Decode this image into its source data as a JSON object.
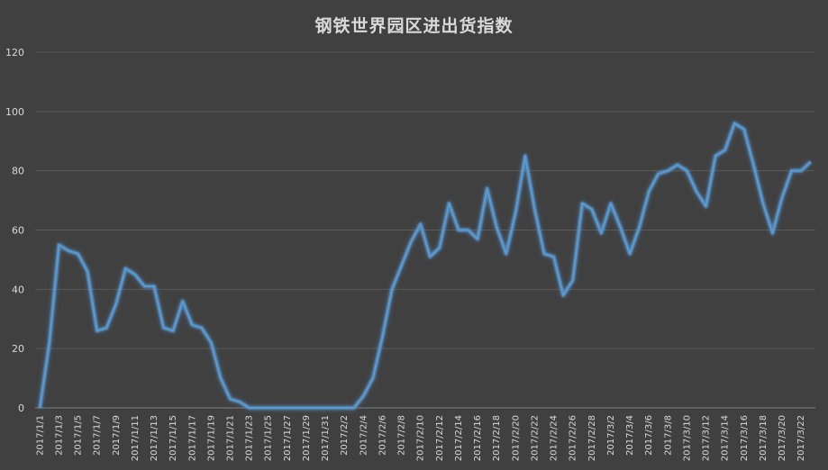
{
  "chart_data": {
    "type": "line",
    "title": "钢铁世界园区进出货指数",
    "xlabel": "",
    "ylabel": "",
    "ylim": [
      0,
      120
    ],
    "yticks": [
      0,
      20,
      40,
      60,
      80,
      100,
      120
    ],
    "grid": true,
    "legend": "none",
    "line_color": "#5b9bd5",
    "x": [
      "2017/1/1",
      "2017/1/2",
      "2017/1/3",
      "2017/1/4",
      "2017/1/5",
      "2017/1/6",
      "2017/1/7",
      "2017/1/8",
      "2017/1/9",
      "2017/1/10",
      "2017/1/11",
      "2017/1/12",
      "2017/1/13",
      "2017/1/14",
      "2017/1/15",
      "2017/1/16",
      "2017/1/17",
      "2017/1/18",
      "2017/1/19",
      "2017/1/20",
      "2017/1/21",
      "2017/1/22",
      "2017/1/23",
      "2017/1/24",
      "2017/1/25",
      "2017/1/26",
      "2017/1/27",
      "2017/1/28",
      "2017/1/29",
      "2017/1/30",
      "2017/1/31",
      "2017/2/1",
      "2017/2/2",
      "2017/2/3",
      "2017/2/4",
      "2017/2/5",
      "2017/2/6",
      "2017/2/7",
      "2017/2/8",
      "2017/2/9",
      "2017/2/10",
      "2017/2/11",
      "2017/2/12",
      "2017/2/13",
      "2017/2/14",
      "2017/2/15",
      "2017/2/16",
      "2017/2/17",
      "2017/2/18",
      "2017/2/19",
      "2017/2/20",
      "2017/2/21",
      "2017/2/22",
      "2017/2/23",
      "2017/2/24",
      "2017/2/25",
      "2017/2/26",
      "2017/2/27",
      "2017/2/28",
      "2017/3/1",
      "2017/3/2",
      "2017/3/3",
      "2017/3/4",
      "2017/3/5",
      "2017/3/6",
      "2017/3/7",
      "2017/3/8",
      "2017/3/9",
      "2017/3/10",
      "2017/3/11",
      "2017/3/12",
      "2017/3/13",
      "2017/3/14",
      "2017/3/15",
      "2017/3/16",
      "2017/3/17",
      "2017/3/18",
      "2017/3/19",
      "2017/3/20",
      "2017/3/21",
      "2017/3/22",
      "2017/3/23"
    ],
    "x_tick_labels": [
      "2017/1/1",
      "2017/1/3",
      "2017/1/5",
      "2017/1/7",
      "2017/1/9",
      "2017/1/11",
      "2017/1/13",
      "2017/1/15",
      "2017/1/17",
      "2017/1/19",
      "2017/1/21",
      "2017/1/23",
      "2017/1/25",
      "2017/1/27",
      "2017/1/29",
      "2017/1/31",
      "2017/2/2",
      "2017/2/4",
      "2017/2/6",
      "2017/2/8",
      "2017/2/10",
      "2017/2/12",
      "2017/2/14",
      "2017/2/16",
      "2017/2/18",
      "2017/2/20",
      "2017/2/22",
      "2017/2/24",
      "2017/2/26",
      "2017/2/28",
      "2017/3/2",
      "2017/3/4",
      "2017/3/6",
      "2017/3/8",
      "2017/3/10",
      "2017/3/12",
      "2017/3/14",
      "2017/3/16",
      "2017/3/18",
      "2017/3/20",
      "2017/3/22"
    ],
    "series": [
      {
        "values": [
          0,
          22,
          55,
          53,
          52,
          46,
          26,
          27,
          35,
          47,
          45,
          41,
          41,
          27,
          26,
          36,
          28,
          27,
          22,
          10,
          3,
          2,
          0,
          0,
          0,
          0,
          0,
          0,
          0,
          0,
          0,
          0,
          0,
          0,
          4,
          10,
          24,
          40,
          48,
          56,
          62,
          51,
          54,
          69,
          60,
          60,
          57,
          74,
          61,
          52,
          66,
          85,
          67,
          52,
          51,
          38,
          43,
          69,
          67,
          59,
          69,
          61,
          52,
          61,
          73,
          79,
          80,
          82,
          80,
          73,
          68,
          85,
          87,
          96,
          94,
          82,
          69,
          59,
          71,
          80,
          80,
          83
        ]
      }
    ]
  }
}
